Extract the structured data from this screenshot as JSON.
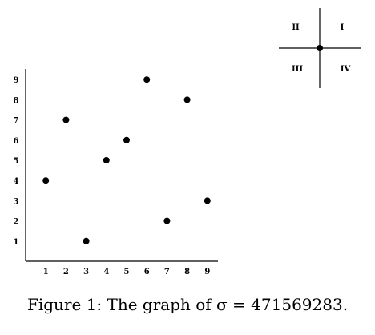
{
  "chart_data": {
    "type": "scatter",
    "x": [
      1,
      2,
      3,
      4,
      5,
      6,
      7,
      8,
      9
    ],
    "y": [
      4,
      7,
      1,
      5,
      6,
      9,
      2,
      8,
      3
    ],
    "xticks": [
      "1",
      "2",
      "3",
      "4",
      "5",
      "6",
      "7",
      "8",
      "9"
    ],
    "yticks": [
      "1",
      "2",
      "3",
      "4",
      "5",
      "6",
      "7",
      "8",
      "9"
    ],
    "xlim": [
      0,
      9.6
    ],
    "ylim": [
      0,
      9.6
    ],
    "grid": false
  },
  "quadrant_legend": {
    "labels": {
      "top_left": "II",
      "top_right": "I",
      "bottom_left": "III",
      "bottom_right": "IV"
    }
  },
  "caption": {
    "label": "Figure 1:",
    "text": "The graph of σ = 471569283."
  }
}
